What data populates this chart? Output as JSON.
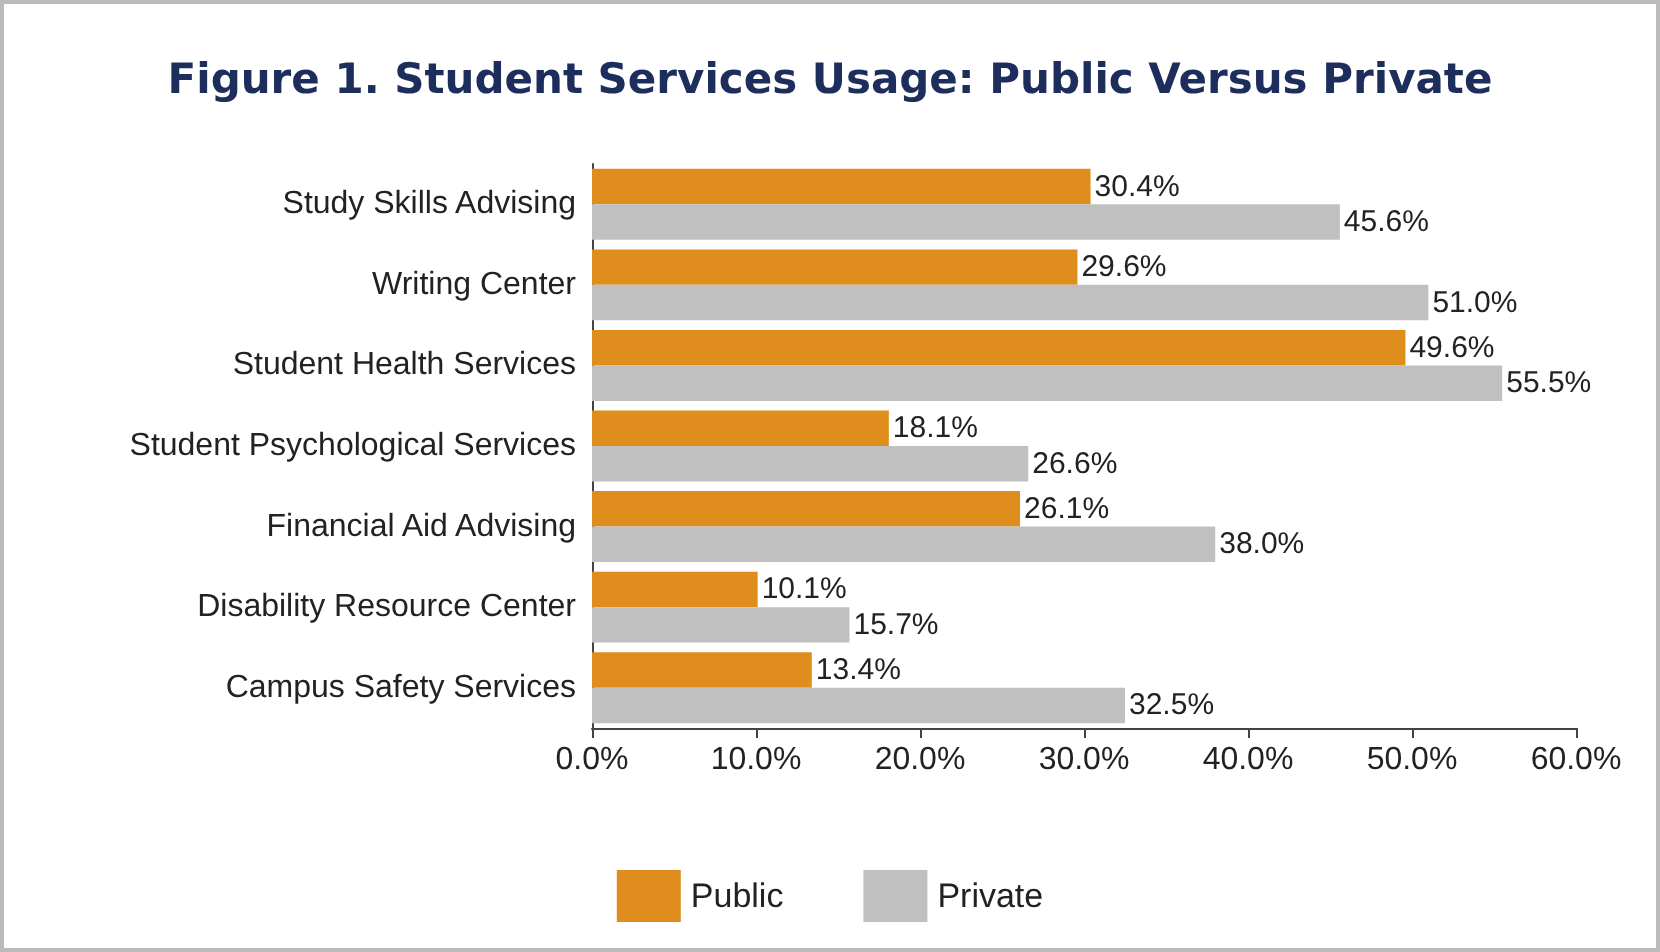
{
  "chart_data": {
    "type": "bar",
    "orientation": "horizontal",
    "title": "Figure 1. Student Services Usage: Public Versus Private",
    "categories": [
      "Study Skills Advising",
      "Writing Center",
      "Student Health Services",
      "Student Psychological Services",
      "Financial Aid Advising",
      "Disability Resource Center",
      "Campus Safety Services"
    ],
    "series": [
      {
        "name": "Public",
        "color": "#df8d1c",
        "values": [
          30.4,
          29.6,
          49.6,
          18.1,
          26.1,
          10.1,
          13.4
        ],
        "value_labels": [
          "30.4%",
          "29.6%",
          "49.6%",
          "18.1%",
          "26.1%",
          "10.1%",
          "13.4%"
        ]
      },
      {
        "name": "Private",
        "color": "#c0c0c0",
        "values": [
          45.6,
          51.0,
          55.5,
          26.6,
          38.0,
          15.7,
          32.5
        ],
        "value_labels": [
          "45.6%",
          "51.0%",
          "55.5%",
          "26.6%",
          "38.0%",
          "15.7%",
          "32.5%"
        ]
      }
    ],
    "xlim": [
      0,
      60
    ],
    "xticks": [
      {
        "value": 0,
        "label": "0.0%"
      },
      {
        "value": 10,
        "label": "10.0%"
      },
      {
        "value": 20,
        "label": "20.0%"
      },
      {
        "value": 30,
        "label": "30.0%"
      },
      {
        "value": 40,
        "label": "40.0%"
      },
      {
        "value": 50,
        "label": "50.0%"
      },
      {
        "value": 60,
        "label": "60.0%"
      }
    ],
    "grid": false,
    "legend": "bottom"
  }
}
